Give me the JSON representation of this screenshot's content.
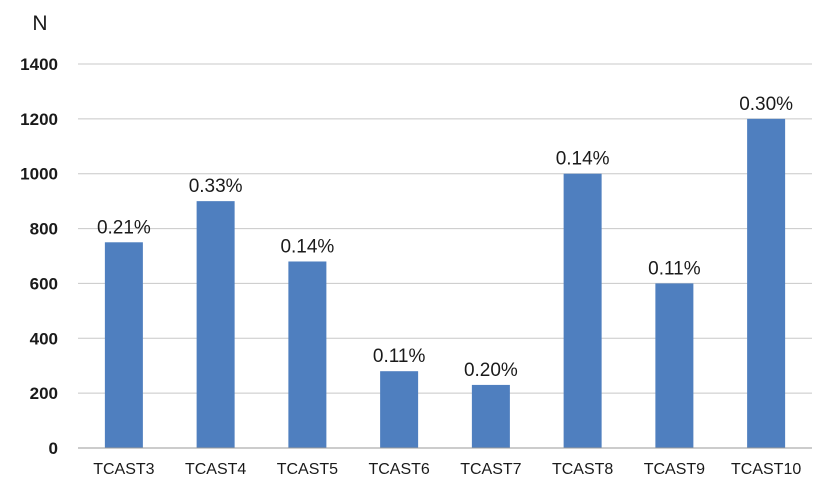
{
  "chart_data": {
    "type": "bar",
    "title": "",
    "xlabel": "",
    "ylabel": "N",
    "ylim": [
      0,
      1400
    ],
    "yticks": [
      0,
      200,
      400,
      600,
      800,
      1000,
      1200,
      1400
    ],
    "grid": true,
    "legend": "none",
    "bar_color": "#4f7fbf",
    "categories": [
      "TCAST3",
      "TCAST4",
      "TCAST5",
      "TCAST6",
      "TCAST7",
      "TCAST8",
      "TCAST9",
      "TCAST10"
    ],
    "values": [
      750,
      900,
      680,
      280,
      230,
      1000,
      600,
      1200
    ],
    "data_labels": [
      "0.21%",
      "0.33%",
      "0.14%",
      "0.11%",
      "0.20%",
      "0.14%",
      "0.11%",
      "0.30%"
    ]
  }
}
